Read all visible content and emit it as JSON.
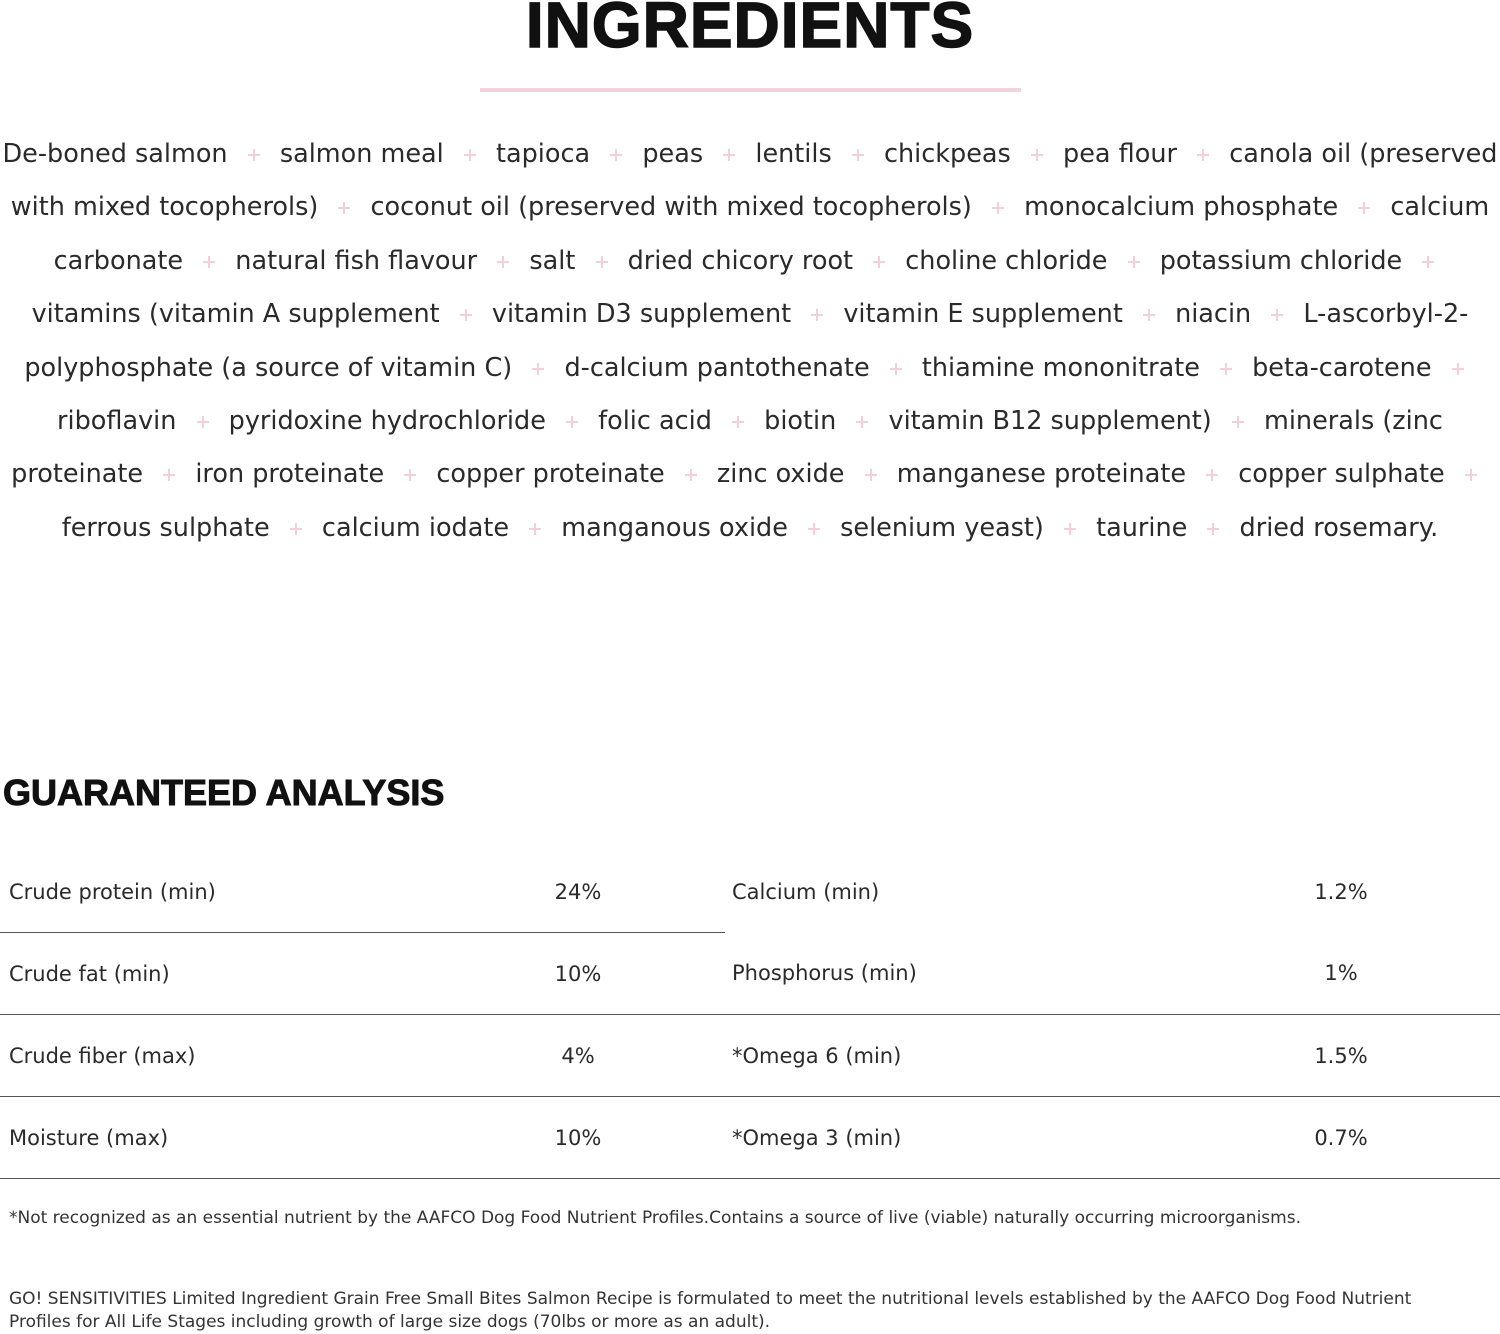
{
  "title": "INGREDIENTS",
  "ingredients": [
    "De-boned salmon",
    "salmon meal",
    "tapioca",
    "peas",
    "lentils",
    "chickpeas",
    "pea flour",
    "canola oil (preserved with mixed tocopherols)",
    "coconut oil (preserved with mixed tocopherols)",
    "monocalcium phosphate",
    "calcium carbonate",
    "natural fish flavour",
    "salt",
    "dried chicory root",
    "choline chloride",
    "potassium chloride",
    "vitamins (vitamin A supplement",
    "vitamin D3 supplement",
    "vitamin E supplement",
    "niacin",
    "L-ascorbyl-2-polyphosphate (a source of vitamin C)",
    "d-calcium pantothenate",
    "thiamine mononitrate",
    "beta-carotene",
    "riboflavin",
    "pyridoxine hydrochloride",
    "folic acid",
    "biotin",
    "vitamin B12 supplement)",
    "minerals (zinc proteinate",
    "iron proteinate",
    "copper proteinate",
    "zinc oxide",
    "manganese proteinate",
    "copper sulphate",
    "ferrous sulphate",
    "calcium iodate",
    "manganous oxide",
    "selenium yeast)",
    "taurine",
    "dried rosemary."
  ],
  "analysis": {
    "title": "GUARANTEED ANALYSIS",
    "rows": [
      [
        "Crude protein (min)",
        "24%",
        "Calcium (min)",
        "1.2%"
      ],
      [
        "Crude fat (min)",
        "10%",
        "Phosphorus (min)",
        "1%"
      ],
      [
        "Crude fiber (max)",
        "4%",
        "*Omega 6 (min)",
        "1.5%"
      ],
      [
        "Moisture (max)",
        "10%",
        "*Omega 3 (min)",
        "0.7%"
      ]
    ]
  },
  "footnote": "*Not recognized as an essential nutrient by the AAFCO Dog Food Nutrient Profiles.Contains a source of live (viable) naturally occurring microorganisms.",
  "statement": "GO! SENSITIVITIES Limited Ingredient Grain Free Small Bites Salmon Recipe is formulated to meet the nutritional levels established by the AAFCO Dog Food Nutrient Profiles for All Life Stages including growth of large size dogs (70lbs or more as an adult)."
}
